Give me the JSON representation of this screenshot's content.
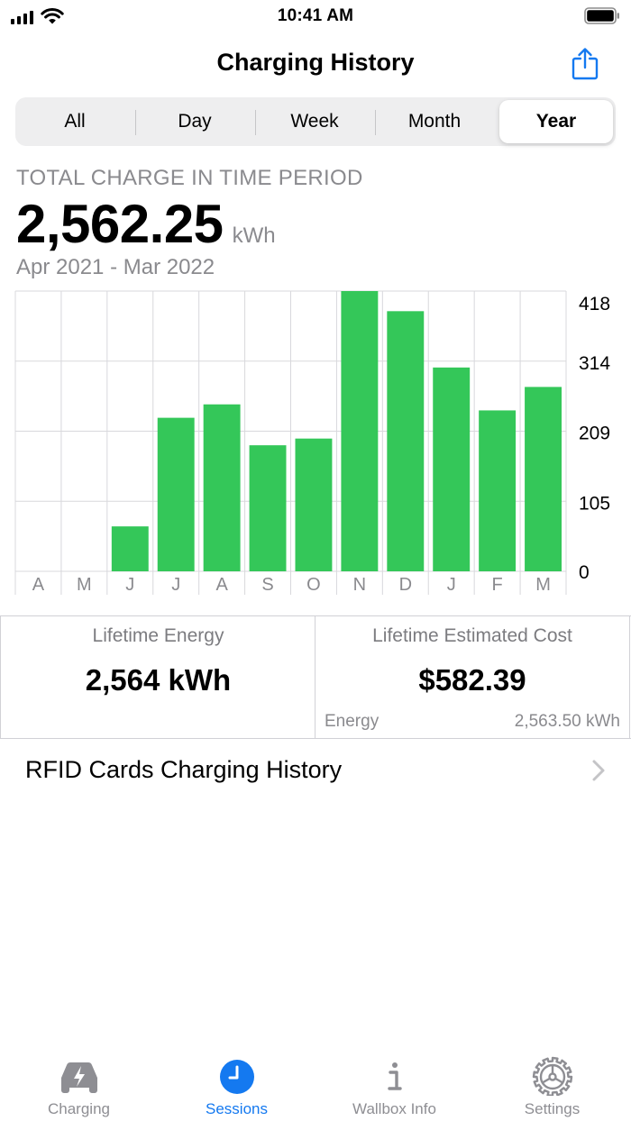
{
  "status_bar": {
    "time": "10:41 AM"
  },
  "header": {
    "title": "Charging History"
  },
  "segments": [
    {
      "label": "All",
      "active": false
    },
    {
      "label": "Day",
      "active": false
    },
    {
      "label": "Week",
      "active": false
    },
    {
      "label": "Month",
      "active": false
    },
    {
      "label": "Year",
      "active": true
    }
  ],
  "summary": {
    "period_label": "TOTAL CHARGE IN TIME PERIOD",
    "total_value": "2,562.25",
    "unit": "kWh",
    "range": "Apr 2021 - Mar 2022"
  },
  "chart_data": {
    "type": "bar",
    "categories": [
      "A",
      "M",
      "J",
      "J",
      "A",
      "S",
      "O",
      "N",
      "D",
      "J",
      "F",
      "M"
    ],
    "values": [
      0,
      0,
      67,
      229,
      249,
      188,
      198,
      418,
      388,
      304,
      240,
      275
    ],
    "y_ticks": [
      "418",
      "314",
      "209",
      "105",
      "0"
    ],
    "ylim": [
      0,
      418
    ],
    "grid": true,
    "bar_color": "#34c759"
  },
  "stats": {
    "lifetime_energy": {
      "title": "Lifetime Energy",
      "value": "2,564 kWh"
    },
    "lifetime_cost": {
      "title": "Lifetime Estimated Cost",
      "value": "$582.39",
      "foot_label": "Energy",
      "foot_value": "2,563.50 kWh"
    }
  },
  "rfid": {
    "label": "RFID Cards Charging History"
  },
  "tabs": [
    {
      "label": "Charging",
      "icon": "car-bolt-icon",
      "active": false
    },
    {
      "label": "Sessions",
      "icon": "clock-icon",
      "active": true
    },
    {
      "label": "Wallbox Info",
      "icon": "info-icon",
      "active": false
    },
    {
      "label": "Settings",
      "icon": "gear-icon",
      "active": false
    }
  ],
  "colors": {
    "accent": "#1479f0",
    "bar": "#34c759",
    "secondary_text": "#8a8a8e"
  }
}
